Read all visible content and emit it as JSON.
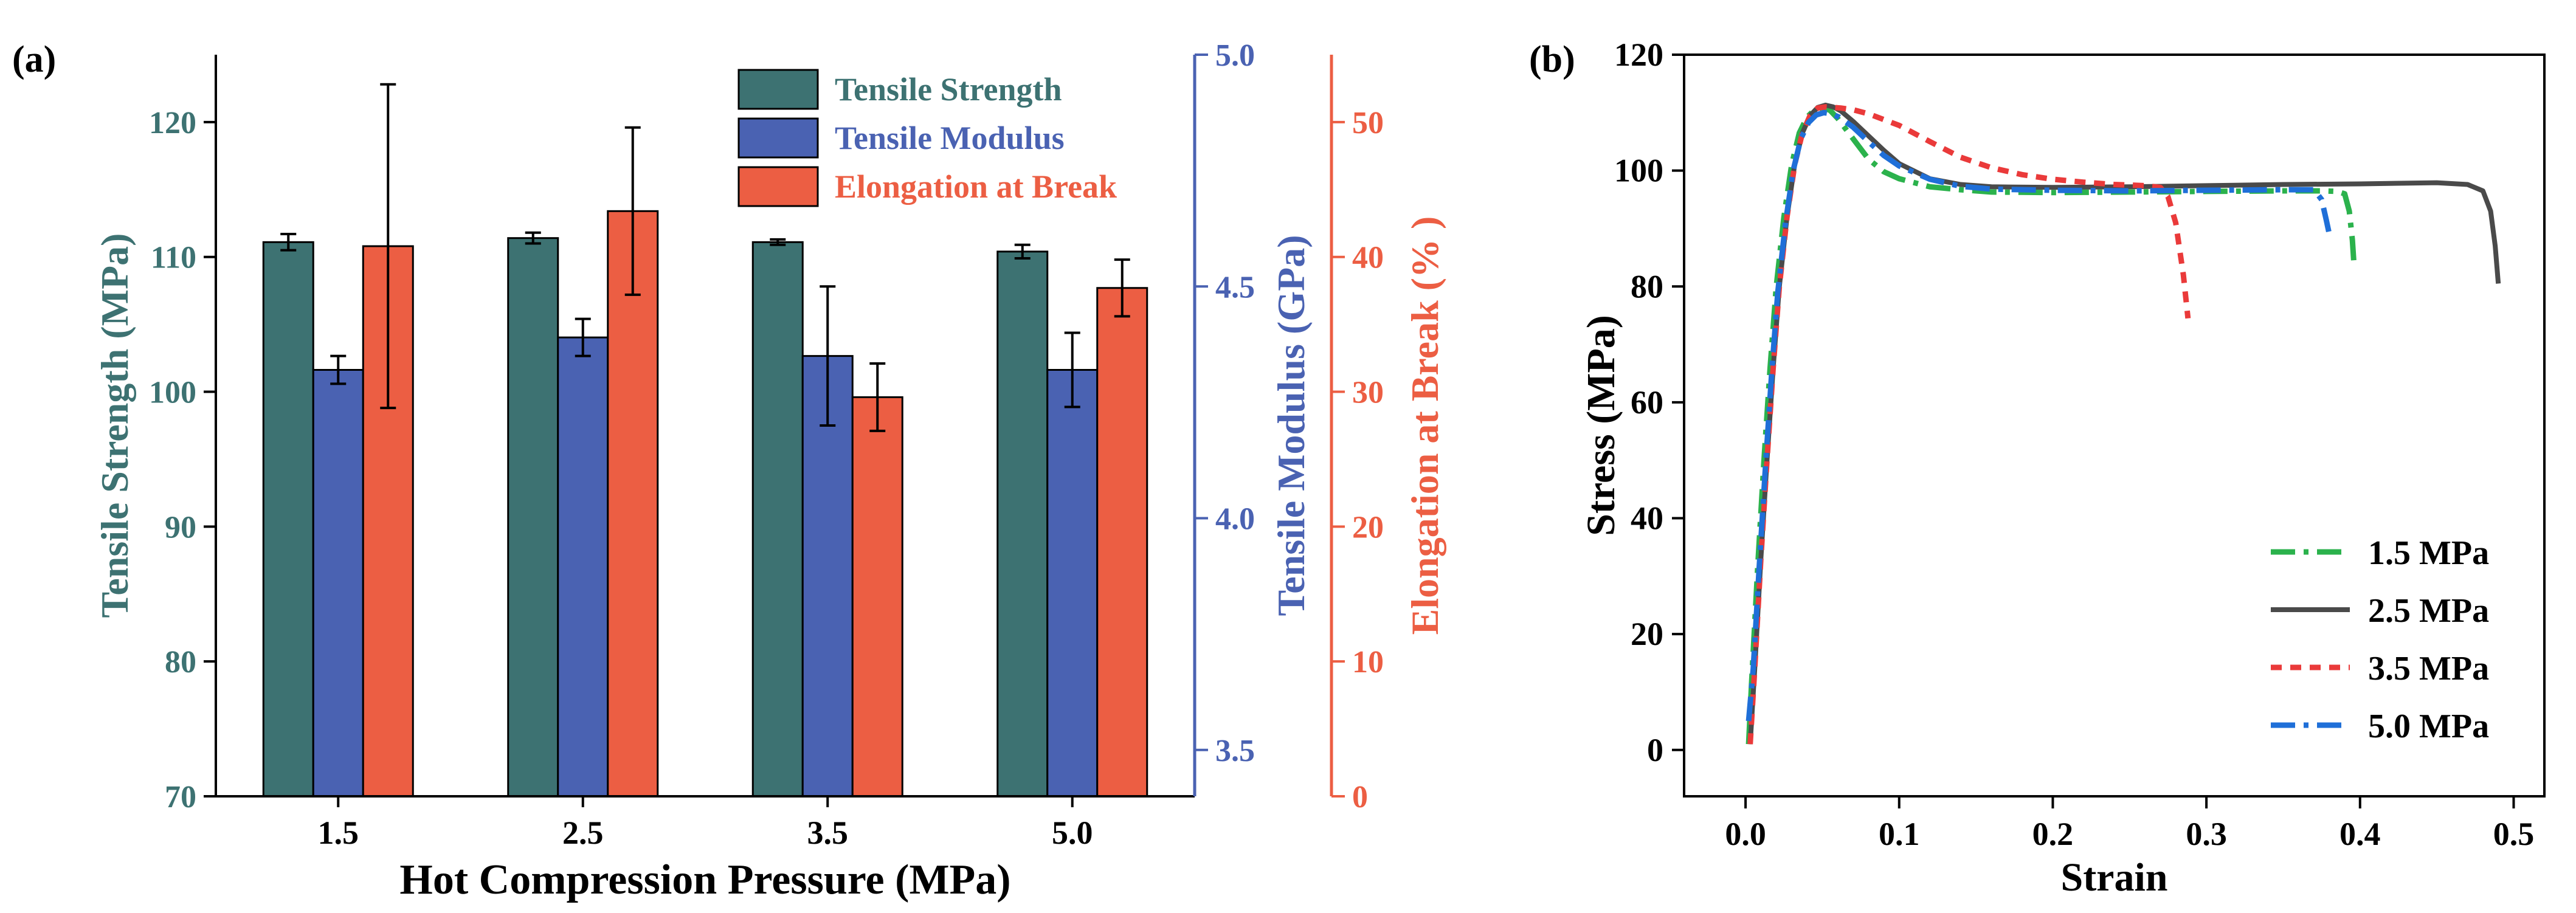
{
  "figure": {
    "panel_a_label": "(a)",
    "panel_b_label": "(b)"
  },
  "colors": {
    "tensile_strength": "#3d7272",
    "tensile_modulus": "#4a62b2",
    "elongation": "#ec5e43",
    "axis": "#000000",
    "c15": "#2bb24c",
    "c25": "#4a4a4a",
    "c35": "#ea3a3a",
    "c50": "#1f6fd8"
  },
  "chart_data": [
    {
      "type": "bar",
      "panel": "(a)",
      "categories": [
        "1.5",
        "2.5",
        "3.5",
        "5.0"
      ],
      "xlabel": "Hot Compression Pressure (MPa)",
      "legend_position": "top-right",
      "series": [
        {
          "name": "Tensile Strength",
          "axis": "left",
          "values": [
            111.1,
            111.4,
            111.1,
            110.4
          ],
          "errors": [
            0.6,
            0.4,
            0.2,
            0.5
          ]
        },
        {
          "name": "Tensile Modulus",
          "axis": "mid",
          "values": [
            4.32,
            4.39,
            4.35,
            4.32
          ],
          "errors": [
            0.03,
            0.04,
            0.15,
            0.08
          ]
        },
        {
          "name": "Elongation at Break",
          "axis": "right",
          "values": [
            40.8,
            43.4,
            29.6,
            37.7
          ],
          "errors": [
            12.0,
            6.2,
            2.5,
            2.1
          ]
        }
      ],
      "axes": {
        "left": {
          "label": "Tensile Strength (MPa)",
          "ylim": [
            70,
            125
          ],
          "ticks": [
            70,
            80,
            90,
            100,
            110,
            120
          ],
          "tick_labels": [
            "70",
            "80",
            "90",
            "100",
            "110",
            "120"
          ]
        },
        "mid": {
          "label": "Tensile Modulus  (GPa)",
          "ylim": [
            3.4,
            5.0
          ],
          "ticks": [
            3.5,
            4.0,
            4.5,
            5.0
          ],
          "tick_labels": [
            "3.5",
            "4.0",
            "4.5",
            "5.0"
          ]
        },
        "right": {
          "label": "Elongation at Break (% )",
          "ylim": [
            0,
            55
          ],
          "ticks": [
            0,
            10,
            20,
            30,
            40,
            50
          ],
          "tick_labels": [
            "0",
            "10",
            "20",
            "30",
            "40",
            "50"
          ]
        }
      }
    },
    {
      "type": "line",
      "panel": "(b)",
      "xlabel": "Strain",
      "ylabel": "Stress (MPa)",
      "xlim": [
        -0.04,
        0.52
      ],
      "ylim": [
        -8,
        120
      ],
      "xticks": [
        0.0,
        0.1,
        0.2,
        0.3,
        0.4,
        0.5
      ],
      "xtick_labels": [
        "0.0",
        "0.1",
        "0.2",
        "0.3",
        "0.4",
        "0.5"
      ],
      "yticks": [
        0,
        20,
        40,
        60,
        80,
        100,
        120
      ],
      "ytick_labels": [
        "0",
        "20",
        "40",
        "60",
        "80",
        "100",
        "120"
      ],
      "legend_position": "bottom-right",
      "series": [
        {
          "name": "1.5 MPa",
          "style": "dashdot",
          "x": [
            0.002,
            0.004,
            0.008,
            0.012,
            0.016,
            0.02,
            0.025,
            0.03,
            0.035,
            0.04,
            0.045,
            0.05,
            0.055,
            0.06,
            0.07,
            0.08,
            0.09,
            0.1,
            0.12,
            0.14,
            0.16,
            0.2,
            0.25,
            0.3,
            0.35,
            0.375,
            0.385,
            0.39,
            0.393,
            0.395,
            0.396
          ],
          "y": [
            1,
            12,
            32,
            50,
            66,
            80,
            92,
            101,
            106.5,
            109.2,
            110.5,
            110.9,
            110.4,
            109,
            105.5,
            102,
            99.8,
            98.6,
            97.2,
            96.7,
            96.3,
            96.2,
            96.3,
            96.4,
            96.5,
            96.5,
            96.4,
            96,
            93,
            88,
            84
          ]
        },
        {
          "name": "2.5 MPa",
          "style": "solid",
          "x": [
            0.003,
            0.006,
            0.01,
            0.014,
            0.018,
            0.022,
            0.027,
            0.032,
            0.037,
            0.042,
            0.047,
            0.052,
            0.057,
            0.062,
            0.07,
            0.08,
            0.09,
            0.1,
            0.12,
            0.14,
            0.16,
            0.2,
            0.25,
            0.3,
            0.35,
            0.4,
            0.45,
            0.47,
            0.48,
            0.485,
            0.488,
            0.49
          ],
          "y": [
            1,
            14,
            33,
            50,
            66,
            80,
            92,
            101,
            106.5,
            109.5,
            110.9,
            111.3,
            111,
            110.3,
            108.5,
            106,
            103.5,
            101.2,
            98.6,
            97.6,
            97.2,
            97.1,
            97.2,
            97.4,
            97.6,
            97.7,
            97.9,
            97.6,
            96.5,
            93,
            87,
            80.5
          ]
        },
        {
          "name": "3.5 MPa",
          "style": "dotted",
          "x": [
            0.003,
            0.006,
            0.01,
            0.014,
            0.018,
            0.022,
            0.027,
            0.032,
            0.037,
            0.042,
            0.047,
            0.052,
            0.057,
            0.062,
            0.07,
            0.08,
            0.1,
            0.12,
            0.14,
            0.16,
            0.18,
            0.2,
            0.22,
            0.24,
            0.26,
            0.27,
            0.275,
            0.28,
            0.285,
            0.288
          ],
          "y": [
            1,
            14,
            33,
            50,
            66,
            80,
            92,
            101,
            106.5,
            109.5,
            110.8,
            111,
            110.9,
            110.8,
            110.5,
            109.8,
            107.8,
            105,
            102.3,
            100.5,
            99.3,
            98.5,
            98,
            97.6,
            97.4,
            97.1,
            95.5,
            91,
            82,
            74.5
          ]
        },
        {
          "name": "5.0 MPa",
          "style": "dashdot",
          "x": [
            0.002,
            0.005,
            0.009,
            0.013,
            0.017,
            0.021,
            0.026,
            0.031,
            0.036,
            0.041,
            0.046,
            0.051,
            0.056,
            0.061,
            0.07,
            0.08,
            0.09,
            0.1,
            0.12,
            0.14,
            0.16,
            0.2,
            0.25,
            0.3,
            0.35,
            0.37,
            0.375,
            0.378,
            0.38
          ],
          "y": [
            5,
            14,
            32,
            49,
            65,
            79,
            91,
            100,
            105.5,
            108.3,
            109.6,
            110,
            109.8,
            109.2,
            107.5,
            105,
            102.6,
            100.8,
            98.5,
            97.3,
            96.8,
            96.6,
            96.5,
            96.6,
            96.7,
            96.7,
            95,
            91.5,
            89
          ]
        }
      ]
    }
  ]
}
